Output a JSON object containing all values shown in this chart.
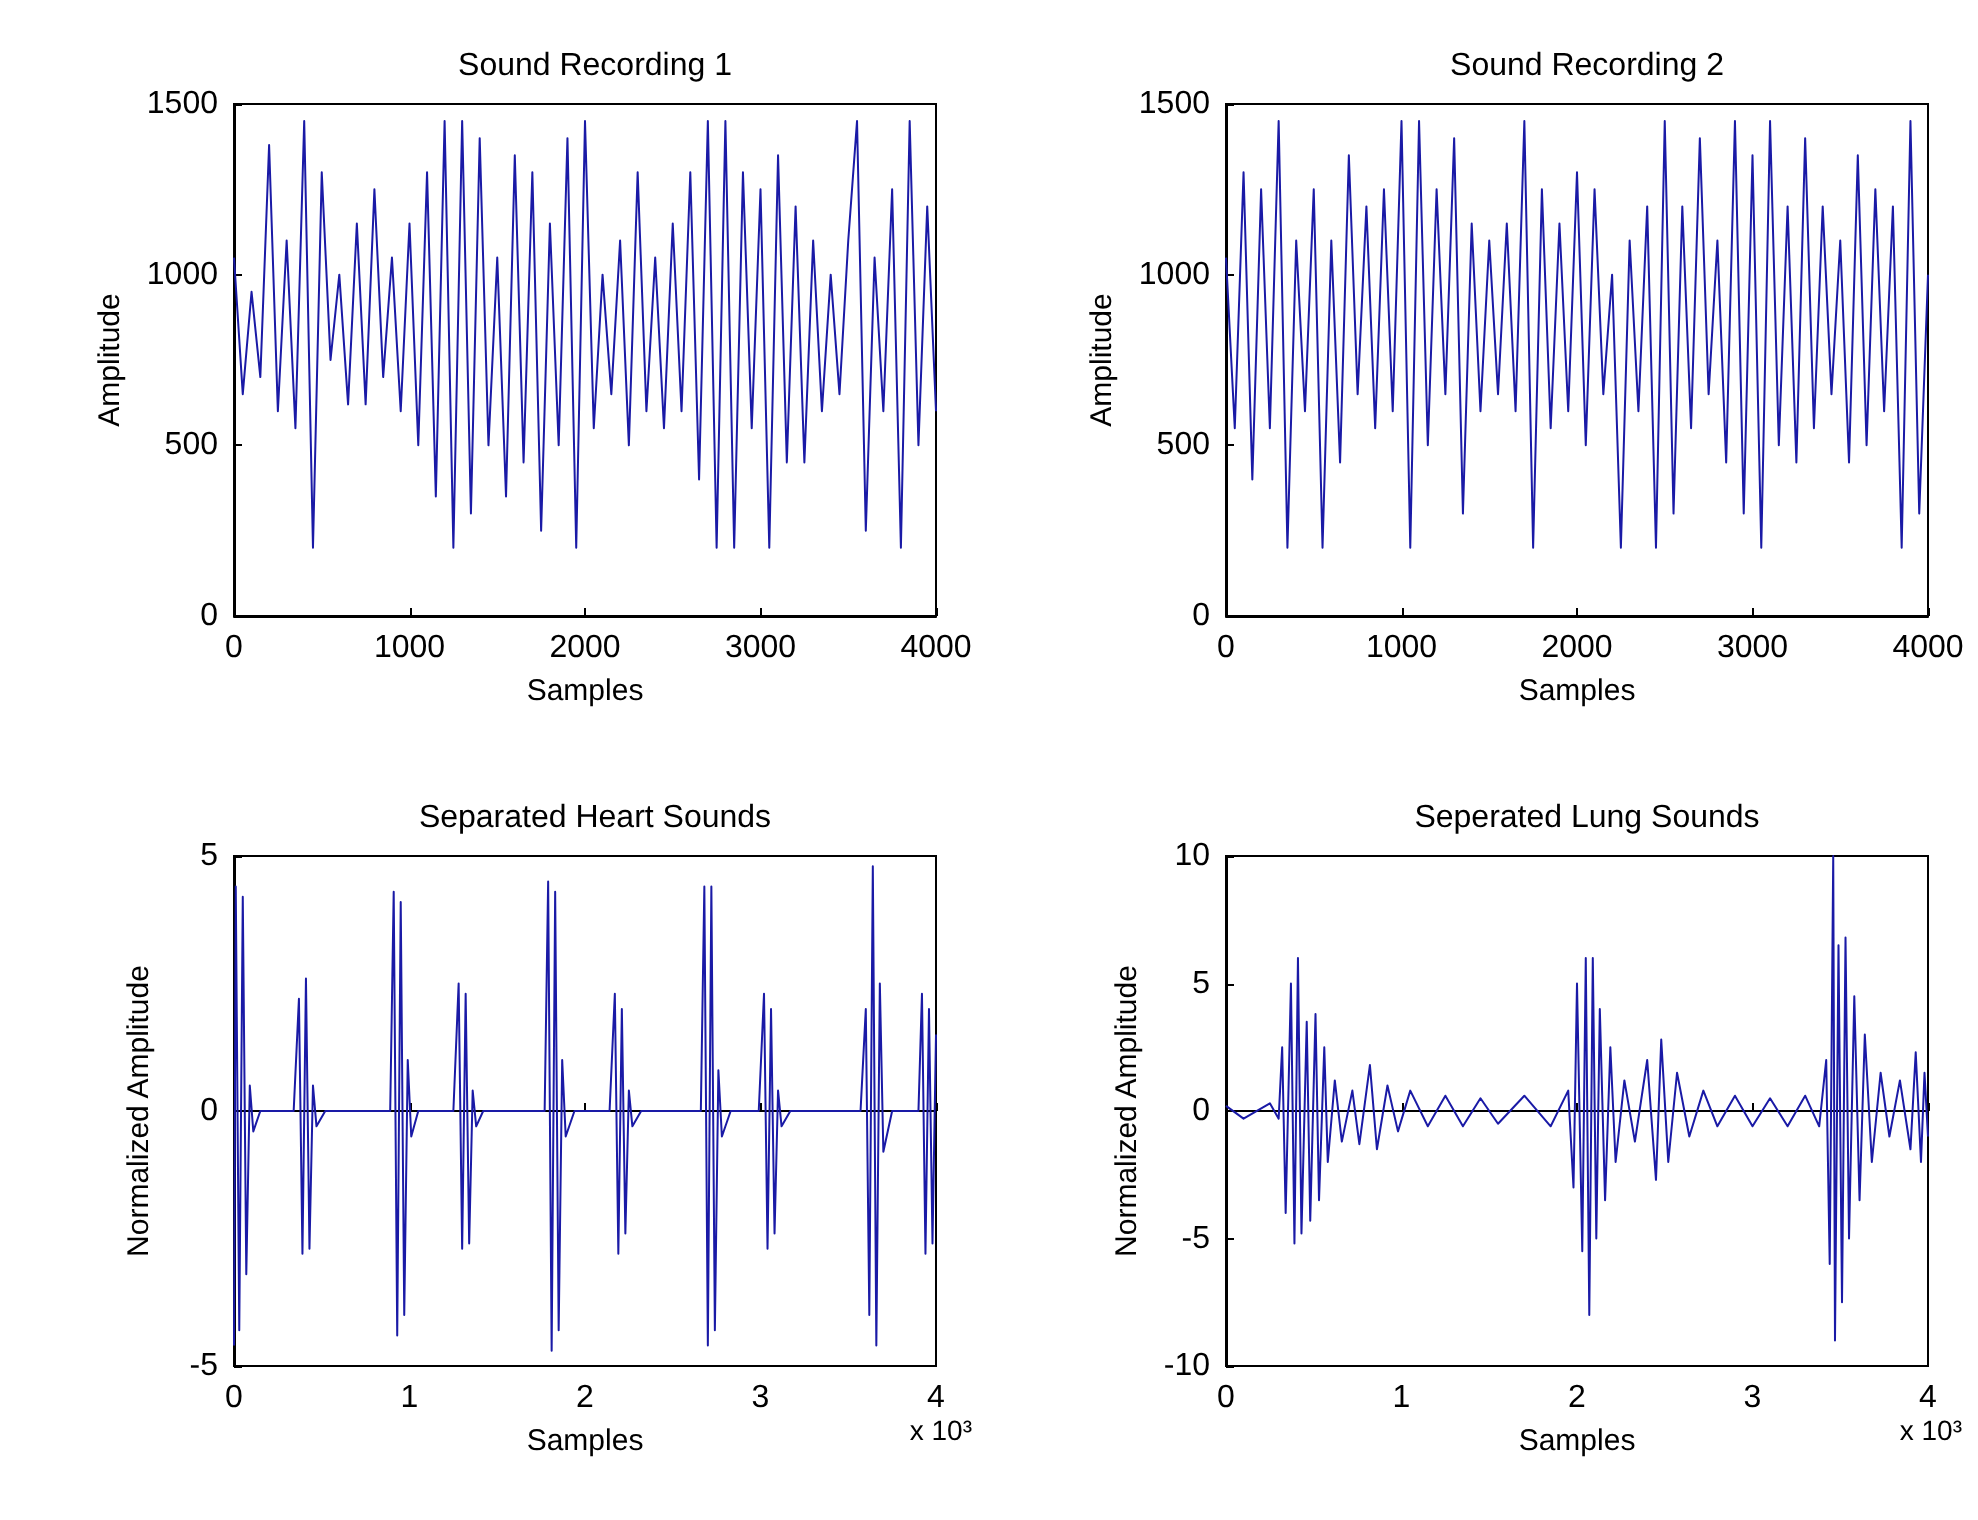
{
  "chart_data": [
    {
      "type": "line",
      "title": "Sound Recording 1",
      "xlabel": "Samples",
      "ylabel": "Amplitude",
      "x": [
        0,
        50,
        100,
        150,
        200,
        250,
        300,
        350,
        400,
        450,
        500,
        550,
        600,
        650,
        700,
        750,
        800,
        850,
        900,
        950,
        1000,
        1050,
        1100,
        1150,
        1200,
        1250,
        1300,
        1350,
        1400,
        1450,
        1500,
        1550,
        1600,
        1650,
        1700,
        1750,
        1800,
        1850,
        1900,
        1950,
        2000,
        2050,
        2100,
        2150,
        2200,
        2250,
        2300,
        2350,
        2400,
        2450,
        2500,
        2550,
        2600,
        2650,
        2700,
        2750,
        2800,
        2850,
        2900,
        2950,
        3000,
        3050,
        3100,
        3150,
        3200,
        3250,
        3300,
        3350,
        3400,
        3450,
        3500,
        3550,
        3600,
        3650,
        3700,
        3750,
        3800,
        3850,
        3900,
        3950,
        4000
      ],
      "series": [
        {
          "color": "#1a1aa6",
          "values": [
            1050,
            650,
            950,
            700,
            1380,
            600,
            1100,
            550,
            1450,
            200,
            1300,
            750,
            1000,
            620,
            1150,
            620,
            1250,
            700,
            1050,
            600,
            1150,
            500,
            1300,
            350,
            1450,
            200,
            1450,
            300,
            1400,
            500,
            1050,
            350,
            1350,
            450,
            1300,
            250,
            1150,
            500,
            1400,
            200,
            1450,
            550,
            1000,
            650,
            1100,
            500,
            1300,
            600,
            1050,
            550,
            1150,
            600,
            1300,
            400,
            1450,
            200,
            1450,
            200,
            1300,
            550,
            1250,
            200,
            1350,
            450,
            1200,
            450,
            1100,
            600,
            1000,
            650,
            1100,
            1450,
            250,
            1050,
            600,
            1250,
            200,
            1450,
            500,
            1200,
            600
          ]
        }
      ],
      "xlim": [
        0,
        4000
      ],
      "xticks": [
        0,
        1000,
        2000,
        3000,
        4000
      ],
      "ylim": [
        0,
        1500
      ],
      "yticks": [
        0,
        500,
        1000,
        1500
      ]
    },
    {
      "type": "line",
      "title": "Sound Recording 2",
      "xlabel": "Samples",
      "ylabel": "Amplitude",
      "x": [
        0,
        50,
        100,
        150,
        200,
        250,
        300,
        350,
        400,
        450,
        500,
        550,
        600,
        650,
        700,
        750,
        800,
        850,
        900,
        950,
        1000,
        1050,
        1100,
        1150,
        1200,
        1250,
        1300,
        1350,
        1400,
        1450,
        1500,
        1550,
        1600,
        1650,
        1700,
        1750,
        1800,
        1850,
        1900,
        1950,
        2000,
        2050,
        2100,
        2150,
        2200,
        2250,
        2300,
        2350,
        2400,
        2450,
        2500,
        2550,
        2600,
        2650,
        2700,
        2750,
        2800,
        2850,
        2900,
        2950,
        3000,
        3050,
        3100,
        3150,
        3200,
        3250,
        3300,
        3350,
        3400,
        3450,
        3500,
        3550,
        3600,
        3650,
        3700,
        3750,
        3800,
        3850,
        3900,
        3950,
        4000
      ],
      "series": [
        {
          "color": "#1a1aa6",
          "values": [
            1050,
            550,
            1300,
            400,
            1250,
            550,
            1450,
            200,
            1100,
            600,
            1250,
            200,
            1100,
            450,
            1350,
            650,
            1200,
            550,
            1250,
            600,
            1450,
            200,
            1450,
            500,
            1250,
            650,
            1400,
            300,
            1150,
            600,
            1100,
            650,
            1150,
            600,
            1450,
            200,
            1250,
            550,
            1150,
            600,
            1300,
            500,
            1250,
            650,
            1000,
            200,
            1100,
            600,
            1200,
            200,
            1450,
            300,
            1200,
            550,
            1400,
            650,
            1100,
            450,
            1450,
            300,
            1350,
            200,
            1450,
            500,
            1200,
            450,
            1400,
            550,
            1200,
            650,
            1100,
            450,
            1350,
            500,
            1250,
            600,
            1200,
            200,
            1450,
            300,
            1000
          ]
        }
      ],
      "xlim": [
        0,
        4000
      ],
      "xticks": [
        0,
        1000,
        2000,
        3000,
        4000
      ],
      "ylim": [
        0,
        1500
      ],
      "yticks": [
        0,
        500,
        1000,
        1500
      ]
    },
    {
      "type": "line",
      "title": "Separated Heart Sounds",
      "xlabel": "Samples",
      "ylabel": "Normalized Amplitude",
      "annotations": [
        "x 10³"
      ],
      "x": [
        0,
        0.01,
        0.03,
        0.05,
        0.07,
        0.09,
        0.11,
        0.15,
        0.34,
        0.37,
        0.39,
        0.41,
        0.43,
        0.45,
        0.47,
        0.52,
        0.89,
        0.91,
        0.93,
        0.95,
        0.97,
        0.99,
        1.01,
        1.05,
        1.25,
        1.28,
        1.3,
        1.32,
        1.34,
        1.36,
        1.38,
        1.42,
        1.77,
        1.79,
        1.81,
        1.83,
        1.85,
        1.87,
        1.89,
        1.94,
        2.14,
        2.17,
        2.19,
        2.21,
        2.23,
        2.25,
        2.27,
        2.32,
        2.66,
        2.68,
        2.7,
        2.72,
        2.74,
        2.76,
        2.78,
        2.83,
        2.99,
        3.02,
        3.04,
        3.06,
        3.08,
        3.1,
        3.12,
        3.17,
        3.57,
        3.6,
        3.62,
        3.64,
        3.66,
        3.68,
        3.7,
        3.75,
        3.9,
        3.92,
        3.94,
        3.96,
        3.98,
        4
      ],
      "series": [
        {
          "color": "#1a1aa6",
          "values": [
            -4.6,
            4.4,
            -4.3,
            4.2,
            -3.2,
            0.5,
            -0.4,
            0,
            0,
            2.2,
            -2.8,
            2.6,
            -2.7,
            0.5,
            -0.3,
            0,
            0,
            4.3,
            -4.4,
            4.1,
            -4,
            1,
            -0.5,
            0,
            0,
            2.5,
            -2.7,
            2.3,
            -2.6,
            0.4,
            -0.3,
            0,
            0,
            4.5,
            -4.7,
            4.3,
            -4.3,
            1,
            -0.5,
            0,
            0,
            2.3,
            -2.8,
            2,
            -2.4,
            0.4,
            -0.3,
            0,
            0,
            4.4,
            -4.6,
            4.4,
            -4.3,
            0.8,
            -0.5,
            0,
            0,
            2.3,
            -2.7,
            2,
            -2.4,
            0.4,
            -0.3,
            0,
            0,
            2,
            -4,
            4.8,
            -4.6,
            2.5,
            -0.8,
            0,
            0,
            2.3,
            -2.8,
            2,
            -2.6,
            1.5
          ]
        }
      ],
      "xlim": [
        0,
        4
      ],
      "xticks": [
        0,
        1,
        2,
        3,
        4
      ],
      "ylim": [
        -5,
        5
      ],
      "yticks": [
        -5,
        0,
        5
      ]
    },
    {
      "type": "line",
      "title": "Seperated Lung Sounds",
      "xlabel": "Samples",
      "ylabel": "Normalized Amplitude",
      "annotations": [
        "x 10³"
      ],
      "x": [
        0,
        0.1,
        0.25,
        0.3,
        0.32,
        0.34,
        0.37,
        0.39,
        0.41,
        0.43,
        0.46,
        0.48,
        0.51,
        0.53,
        0.56,
        0.58,
        0.62,
        0.66,
        0.72,
        0.76,
        0.82,
        0.86,
        0.92,
        0.98,
        1.05,
        1.15,
        1.25,
        1.35,
        1.45,
        1.55,
        1.7,
        1.85,
        1.95,
        1.98,
        2,
        2.03,
        2.05,
        2.07,
        2.09,
        2.11,
        2.13,
        2.16,
        2.19,
        2.22,
        2.27,
        2.33,
        2.4,
        2.45,
        2.48,
        2.52,
        2.57,
        2.64,
        2.72,
        2.8,
        2.9,
        3,
        3.1,
        3.2,
        3.3,
        3.38,
        3.42,
        3.44,
        3.46,
        3.47,
        3.49,
        3.51,
        3.53,
        3.55,
        3.58,
        3.61,
        3.64,
        3.68,
        3.73,
        3.78,
        3.84,
        3.9,
        3.93,
        3.96,
        3.98,
        4
      ],
      "series": [
        {
          "color": "#1a1aa6",
          "values": [
            0.2,
            -0.3,
            0.3,
            -0.3,
            2.5,
            -4,
            5,
            -5.2,
            6,
            -4.8,
            3.5,
            -4.3,
            3.8,
            -3.5,
            2.5,
            -2,
            1.2,
            -1.2,
            0.8,
            -1.3,
            1.8,
            -1.5,
            1,
            -0.8,
            0.8,
            -0.6,
            0.6,
            -0.6,
            0.5,
            -0.5,
            0.6,
            -0.6,
            0.8,
            -3,
            5,
            -5.5,
            6,
            -8,
            6,
            -5,
            4,
            -3.5,
            2.5,
            -2,
            1.2,
            -1.2,
            2,
            -2.7,
            2.8,
            -2,
            1.5,
            -1,
            0.8,
            -0.6,
            0.6,
            -0.6,
            0.5,
            -0.6,
            0.6,
            -0.6,
            2,
            -6,
            10,
            -9,
            6.5,
            -7.5,
            6.8,
            -5,
            4.5,
            -3.5,
            3,
            -2,
            1.5,
            -1,
            1.2,
            -1.5,
            2.3,
            -2,
            1.5,
            -1
          ]
        }
      ],
      "xlim": [
        0,
        4
      ],
      "xticks": [
        0,
        1,
        2,
        3,
        4
      ],
      "ylim": [
        -10,
        10
      ],
      "yticks": [
        -10,
        -5,
        0,
        5,
        10
      ]
    }
  ]
}
